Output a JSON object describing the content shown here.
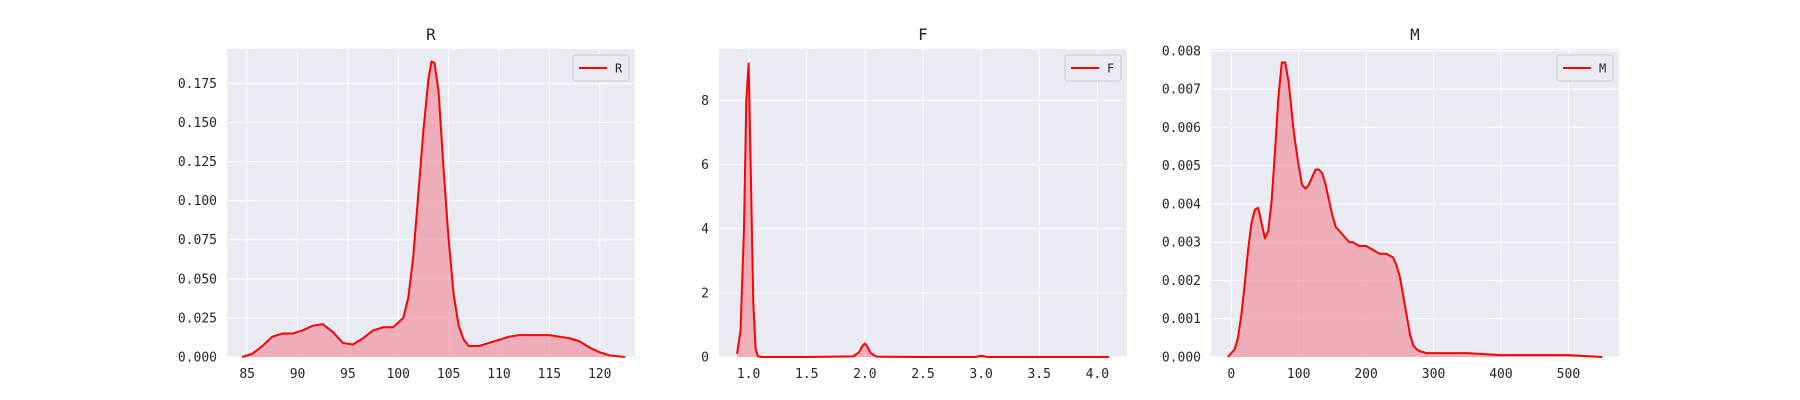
{
  "figure": {
    "background": "#ffffff",
    "axes_background": "#eaeaf2",
    "grid_color": "#ffffff",
    "line_color": "#ff0000",
    "fill_color": "#ef9aa6"
  },
  "chart_data": [
    {
      "type": "area",
      "title": "R",
      "xlabel": "",
      "ylabel": "",
      "xlim": [
        83.0,
        123.5
      ],
      "ylim": [
        0,
        0.197
      ],
      "xticks": [
        85,
        90,
        95,
        100,
        105,
        110,
        115,
        120
      ],
      "xtick_labels": [
        "85",
        "90",
        "95",
        "100",
        "105",
        "110",
        "115",
        "120"
      ],
      "yticks": [
        0,
        0.025,
        0.05,
        0.075,
        0.1,
        0.125,
        0.15,
        0.175
      ],
      "ytick_labels": [
        "0.000",
        "0.025",
        "0.050",
        "0.075",
        "0.100",
        "0.125",
        "0.150",
        "0.175"
      ],
      "grid": true,
      "legend_position": "top-right",
      "series": [
        {
          "name": "R",
          "x": [
            84.5,
            85.5,
            86.5,
            87.5,
            88.5,
            89.5,
            90.5,
            91.5,
            92.5,
            93.5,
            94.5,
            95.5,
            96.5,
            97.5,
            98.5,
            99.5,
            100.5,
            101,
            101.5,
            102,
            102.5,
            103,
            103.3,
            103.6,
            104,
            104.5,
            105,
            105.5,
            106,
            106.5,
            107,
            108,
            109,
            110,
            111,
            112,
            113,
            114,
            115,
            116,
            117,
            118,
            119,
            120,
            121,
            122.5
          ],
          "y": [
            0.0,
            0.002,
            0.007,
            0.013,
            0.015,
            0.015,
            0.017,
            0.02,
            0.021,
            0.016,
            0.009,
            0.008,
            0.012,
            0.017,
            0.019,
            0.019,
            0.025,
            0.038,
            0.065,
            0.105,
            0.145,
            0.178,
            0.189,
            0.188,
            0.17,
            0.12,
            0.075,
            0.04,
            0.02,
            0.011,
            0.007,
            0.007,
            0.009,
            0.011,
            0.013,
            0.014,
            0.014,
            0.014,
            0.014,
            0.013,
            0.012,
            0.01,
            0.006,
            0.003,
            0.001,
            0.0
          ]
        }
      ]
    },
    {
      "type": "area",
      "title": "F",
      "xlabel": "",
      "ylabel": "",
      "xlim": [
        0.745,
        4.255
      ],
      "ylim": [
        0,
        9.6
      ],
      "xticks": [
        1.0,
        1.5,
        2.0,
        2.5,
        3.0,
        3.5,
        4.0
      ],
      "xtick_labels": [
        "1.0",
        "1.5",
        "2.0",
        "2.5",
        "3.0",
        "3.5",
        "4.0"
      ],
      "yticks": [
        0,
        2,
        4,
        6,
        8
      ],
      "ytick_labels": [
        "0",
        "2",
        "4",
        "6",
        "8"
      ],
      "grid": true,
      "legend_position": "top-right",
      "series": [
        {
          "name": "F",
          "x": [
            0.9,
            0.93,
            0.96,
            0.98,
            1.0,
            1.02,
            1.04,
            1.06,
            1.08,
            1.12,
            1.5,
            1.9,
            1.95,
            1.98,
            2.0,
            2.02,
            2.05,
            2.1,
            2.5,
            2.95,
            3.0,
            3.05,
            3.5,
            4.1
          ],
          "y": [
            0.1,
            0.8,
            4.0,
            8.0,
            9.15,
            5.5,
            1.7,
            0.25,
            0.02,
            0.0,
            0.0,
            0.02,
            0.15,
            0.35,
            0.42,
            0.33,
            0.12,
            0.01,
            0.0,
            0.0,
            0.04,
            0.0,
            0.0,
            0.0
          ]
        }
      ]
    },
    {
      "type": "area",
      "title": "M",
      "xlabel": "",
      "ylabel": "",
      "xlim": [
        -30,
        575
      ],
      "ylim": [
        0,
        0.00805
      ],
      "xticks": [
        0,
        100,
        200,
        300,
        400,
        500
      ],
      "xtick_labels": [
        "0",
        "100",
        "200",
        "300",
        "400",
        "500"
      ],
      "yticks": [
        0,
        0.001,
        0.002,
        0.003,
        0.004,
        0.005,
        0.006,
        0.007,
        0.008
      ],
      "ytick_labels": [
        "0.000",
        "0.001",
        "0.002",
        "0.003",
        "0.004",
        "0.005",
        "0.006",
        "0.007",
        "0.008"
      ],
      "grid": true,
      "legend_position": "top-right",
      "series": [
        {
          "name": "M",
          "x": [
            -5,
            0,
            5,
            10,
            15,
            20,
            25,
            30,
            35,
            40,
            45,
            50,
            55,
            60,
            65,
            70,
            75,
            80,
            85,
            88,
            92,
            95,
            100,
            105,
            110,
            115,
            120,
            125,
            130,
            135,
            140,
            145,
            150,
            155,
            160,
            165,
            170,
            175,
            180,
            190,
            200,
            210,
            220,
            230,
            240,
            245,
            250,
            255,
            260,
            265,
            270,
            275,
            280,
            290,
            300,
            350,
            400,
            450,
            500,
            550
          ],
          "y": [
            0.0,
            0.0001,
            0.0002,
            0.0005,
            0.0011,
            0.0019,
            0.0028,
            0.0035,
            0.00385,
            0.0039,
            0.0035,
            0.0031,
            0.0033,
            0.0041,
            0.0054,
            0.0068,
            0.0077,
            0.0077,
            0.0072,
            0.0067,
            0.006,
            0.0056,
            0.005,
            0.0045,
            0.0044,
            0.0045,
            0.0047,
            0.0049,
            0.0049,
            0.0048,
            0.0045,
            0.0041,
            0.0037,
            0.0034,
            0.0033,
            0.0032,
            0.0031,
            0.003,
            0.003,
            0.0029,
            0.0029,
            0.0028,
            0.0027,
            0.0027,
            0.0026,
            0.0024,
            0.0021,
            0.0016,
            0.0011,
            0.0006,
            0.0003,
            0.0002,
            0.00015,
            0.0001,
            0.0001,
            0.0001,
            5e-05,
            5e-05,
            5e-05,
            0.0
          ]
        }
      ]
    }
  ]
}
